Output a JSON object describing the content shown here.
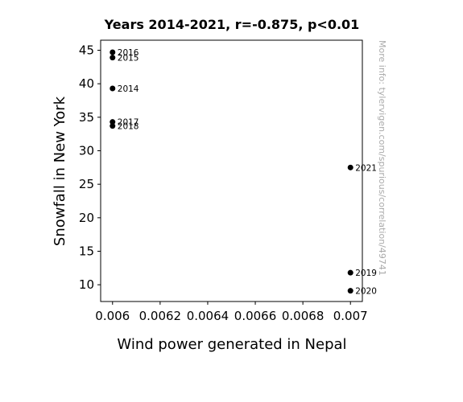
{
  "chart_data": {
    "type": "scatter",
    "title": "Years 2014-2021, r=-0.875, p<0.01",
    "xlabel": "Wind power generated in Nepal",
    "ylabel": "Snowfall in New York",
    "xlim": [
      0.00595,
      0.00705
    ],
    "ylim": [
      7.5,
      46.5
    ],
    "x_ticks": [
      0.006,
      0.0062,
      0.0064,
      0.0066,
      0.0068,
      0.007
    ],
    "x_tick_labels": [
      "0.006",
      "0.0062",
      "0.0064",
      "0.0066",
      "0.0068",
      "0.007"
    ],
    "y_ticks": [
      10,
      15,
      20,
      25,
      30,
      35,
      40,
      45
    ],
    "y_tick_labels": [
      "10",
      "15",
      "20",
      "25",
      "30",
      "35",
      "40",
      "45"
    ],
    "grid": false,
    "marker_color": "#000000",
    "points": [
      {
        "label": "2014",
        "x": 0.006,
        "y": 39.3
      },
      {
        "label": "2015",
        "x": 0.006,
        "y": 43.9
      },
      {
        "label": "2016",
        "x": 0.006,
        "y": 44.7
      },
      {
        "label": "2017",
        "x": 0.006,
        "y": 34.3
      },
      {
        "label": "2018",
        "x": 0.006,
        "y": 33.7
      },
      {
        "label": "2019",
        "x": 0.007,
        "y": 11.8
      },
      {
        "label": "2020",
        "x": 0.007,
        "y": 9.1
      },
      {
        "label": "2021",
        "x": 0.007,
        "y": 27.5
      }
    ]
  },
  "side_note": "More info: tylervigen.com/spurious/correlation/49741"
}
